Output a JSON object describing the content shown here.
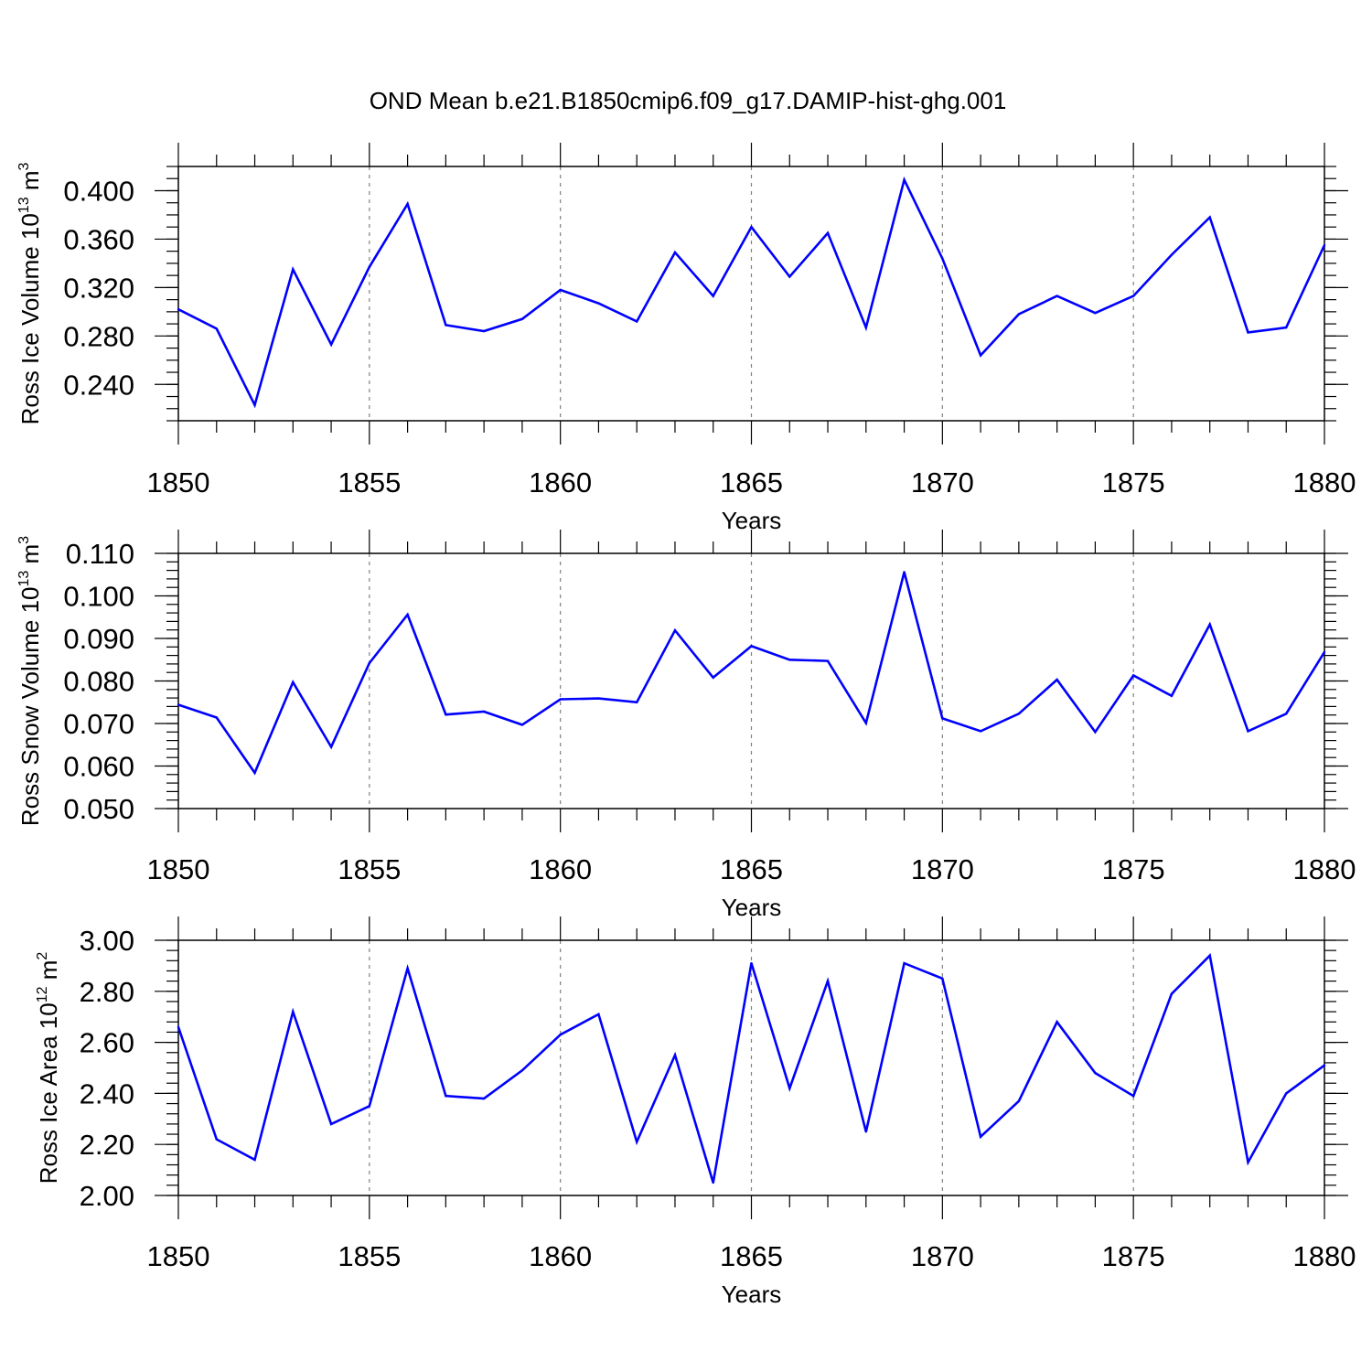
{
  "title": "OND Mean b.e21.B1850cmip6.f09_g17.DAMIP-hist-ghg.001",
  "colors": {
    "line": "#0000ff",
    "axis": "#000000",
    "grid": "#808080",
    "background": "#ffffff"
  },
  "chart_data": [
    {
      "type": "line",
      "ylabel": "Ross Ice Volume",
      "ylabel_unit": "10",
      "ylabel_exp": "13",
      "ylabel_m": "m",
      "ylabel_m_exp": "3",
      "xlabel": "Years",
      "xlim": [
        1850,
        1880
      ],
      "ylim": [
        0.21,
        0.42
      ],
      "x_ticks": [
        "1850",
        "1855",
        "1860",
        "1865",
        "1870",
        "1875",
        "1880"
      ],
      "y_ticks": [
        {
          "value": 0.24,
          "label": "0.240"
        },
        {
          "value": 0.28,
          "label": "0.280"
        },
        {
          "value": 0.32,
          "label": "0.320"
        },
        {
          "value": 0.36,
          "label": "0.360"
        },
        {
          "value": 0.4,
          "label": "0.400"
        }
      ],
      "y_minor_step": 0.01,
      "x": [
        1850,
        1851,
        1852,
        1853,
        1854,
        1855,
        1856,
        1857,
        1858,
        1859,
        1860,
        1861,
        1862,
        1863,
        1864,
        1865,
        1866,
        1867,
        1868,
        1869,
        1870,
        1871,
        1872,
        1873,
        1874,
        1875,
        1876,
        1877,
        1878,
        1879,
        1880
      ],
      "values": [
        0.302,
        0.286,
        0.223,
        0.335,
        0.273,
        0.337,
        0.389,
        0.289,
        0.284,
        0.294,
        0.318,
        0.307,
        0.292,
        0.349,
        0.313,
        0.37,
        0.329,
        0.365,
        0.287,
        0.409,
        0.344,
        0.264,
        0.298,
        0.313,
        0.299,
        0.313,
        0.347,
        0.378,
        0.283,
        0.287,
        0.355
      ]
    },
    {
      "type": "line",
      "ylabel": "Ross Snow Volume",
      "ylabel_unit": "10",
      "ylabel_exp": "13",
      "ylabel_m": "m",
      "ylabel_m_exp": "3",
      "xlabel": "Years",
      "xlim": [
        1850,
        1880
      ],
      "ylim": [
        0.05,
        0.11
      ],
      "x_ticks": [
        "1850",
        "1855",
        "1860",
        "1865",
        "1870",
        "1875",
        "1880"
      ],
      "y_ticks": [
        {
          "value": 0.05,
          "label": "0.050"
        },
        {
          "value": 0.06,
          "label": "0.060"
        },
        {
          "value": 0.07,
          "label": "0.070"
        },
        {
          "value": 0.08,
          "label": "0.080"
        },
        {
          "value": 0.09,
          "label": "0.090"
        },
        {
          "value": 0.1,
          "label": "0.100"
        },
        {
          "value": 0.11,
          "label": "0.110"
        }
      ],
      "y_minor_step": 0.002,
      "x": [
        1850,
        1851,
        1852,
        1853,
        1854,
        1855,
        1856,
        1857,
        1858,
        1859,
        1860,
        1861,
        1862,
        1863,
        1864,
        1865,
        1866,
        1867,
        1868,
        1869,
        1870,
        1871,
        1872,
        1873,
        1874,
        1875,
        1876,
        1877,
        1878,
        1879,
        1880
      ],
      "values": [
        0.0744,
        0.0714,
        0.0584,
        0.0797,
        0.0645,
        0.0842,
        0.0956,
        0.0721,
        0.0728,
        0.0697,
        0.0757,
        0.0759,
        0.075,
        0.0919,
        0.0808,
        0.0882,
        0.085,
        0.0847,
        0.0701,
        0.1056,
        0.0712,
        0.0682,
        0.0723,
        0.0803,
        0.068,
        0.0813,
        0.0765,
        0.0933,
        0.0682,
        0.0723,
        0.0868
      ]
    },
    {
      "type": "line",
      "ylabel": "Ross Ice Area",
      "ylabel_unit": "10",
      "ylabel_exp": "12",
      "ylabel_m": "m",
      "ylabel_m_exp": "2",
      "xlabel": "Years",
      "xlim": [
        1850,
        1880
      ],
      "ylim": [
        2.0,
        3.0
      ],
      "x_ticks": [
        "1850",
        "1855",
        "1860",
        "1865",
        "1870",
        "1875",
        "1880"
      ],
      "y_ticks": [
        {
          "value": 2.0,
          "label": "2.00"
        },
        {
          "value": 2.2,
          "label": "2.20"
        },
        {
          "value": 2.4,
          "label": "2.40"
        },
        {
          "value": 2.6,
          "label": "2.60"
        },
        {
          "value": 2.8,
          "label": "2.80"
        },
        {
          "value": 3.0,
          "label": "3.00"
        }
      ],
      "y_minor_step": 0.04,
      "x": [
        1850,
        1851,
        1852,
        1853,
        1854,
        1855,
        1856,
        1857,
        1858,
        1859,
        1860,
        1861,
        1862,
        1863,
        1864,
        1865,
        1866,
        1867,
        1868,
        1869,
        1870,
        1871,
        1872,
        1873,
        1874,
        1875,
        1876,
        1877,
        1878,
        1879,
        1880
      ],
      "values": [
        2.66,
        2.22,
        2.14,
        2.72,
        2.28,
        2.35,
        2.89,
        2.39,
        2.38,
        2.49,
        2.63,
        2.71,
        2.21,
        2.55,
        2.05,
        2.91,
        2.42,
        2.84,
        2.25,
        2.91,
        2.85,
        2.23,
        2.37,
        2.68,
        2.48,
        2.39,
        2.79,
        2.94,
        2.13,
        2.4,
        2.51
      ]
    }
  ]
}
